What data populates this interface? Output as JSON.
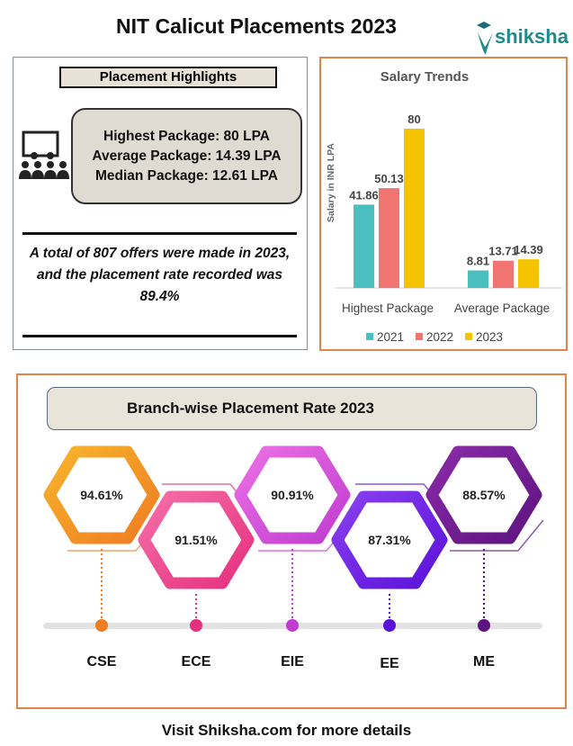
{
  "header": {
    "title": "NIT Calicut Placements 2023",
    "logo_text": "shiksha"
  },
  "highlights": {
    "title": "Placement Highlights",
    "lines": [
      "Highest Package: 80 LPA",
      "Average Package: 14.39 LPA",
      "Median Package: 12.61 LPA"
    ],
    "summary": "A total of 807 offers were made in 2023, and the placement rate recorded was 89.4%"
  },
  "chart_data": [
    {
      "type": "bar",
      "title": "Salary Trends",
      "ylabel": "Salary in INR LPA",
      "xlabel": "",
      "categories": [
        "Highest Package",
        "Average Package"
      ],
      "series": [
        {
          "name": "2021",
          "values": [
            41.86,
            8.81
          ],
          "color": "#4bbfbf"
        },
        {
          "name": "2022",
          "values": [
            50.13,
            13.71
          ],
          "color": "#f07470"
        },
        {
          "name": "2023",
          "values": [
            80,
            14.39
          ],
          "color": "#f5c400"
        }
      ],
      "ylim": [
        0,
        80
      ],
      "grid": false,
      "legend": "bottom"
    },
    {
      "type": "table",
      "title": "Branch-wise Placement Rate 2023",
      "branches": [
        {
          "name": "CSE",
          "rate": "94.61%",
          "colors": [
            "#f7b42c",
            "#ef7d22"
          ]
        },
        {
          "name": "ECE",
          "rate": "91.51%",
          "colors": [
            "#f56fa8",
            "#e6307f"
          ]
        },
        {
          "name": "EIE",
          "rate": "90.91%",
          "colors": [
            "#ec6fe4",
            "#c03dd0"
          ]
        },
        {
          "name": "EE",
          "rate": "87.31%",
          "colors": [
            "#8a3ff0",
            "#5a12d8"
          ]
        },
        {
          "name": "ME",
          "rate": "88.57%",
          "colors": [
            "#8a2aa8",
            "#5e1480"
          ]
        }
      ]
    }
  ],
  "footer": "Visit Shiksha.com for more details"
}
